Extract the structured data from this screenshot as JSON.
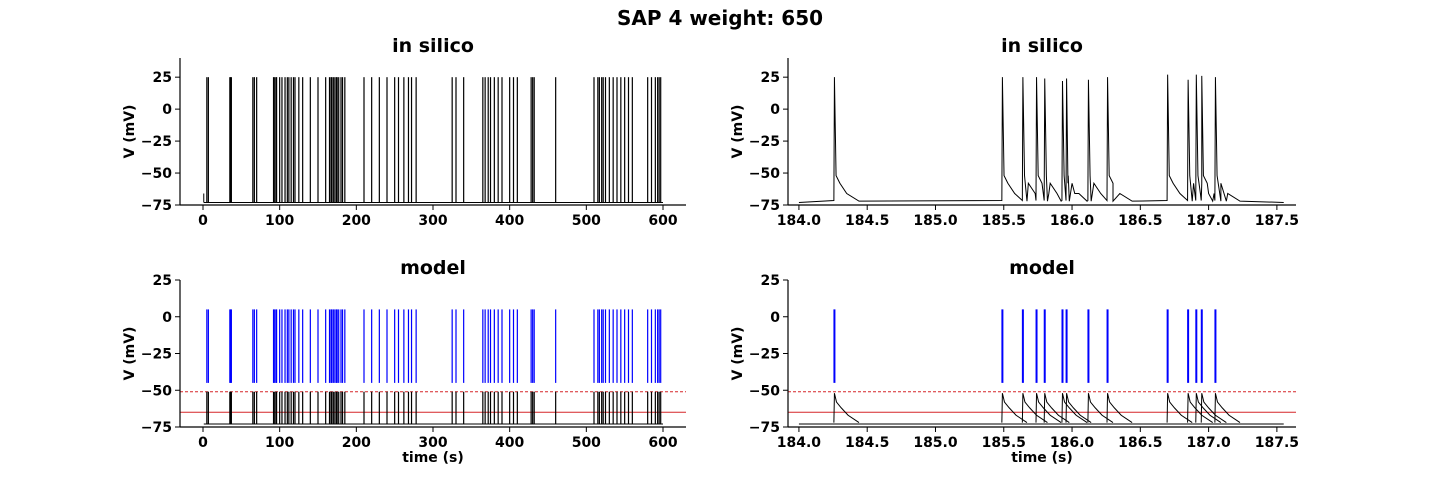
{
  "suptitle": "SAP 4 weight: 650",
  "chart_data": [
    {
      "id": "overview-insilico",
      "type": "line",
      "title": "in silico",
      "xlabel": "",
      "ylabel": "V (mV)",
      "xlim": [
        -30,
        630
      ],
      "ylim": [
        -75,
        40
      ],
      "xticks": [
        0,
        100,
        200,
        300,
        400,
        500,
        600
      ],
      "xtick_labels": [
        "0",
        "100",
        "200",
        "300",
        "400",
        "500",
        "600"
      ],
      "yticks": [
        -75,
        -50,
        -25,
        0,
        25
      ],
      "ytick_labels": [
        "−75",
        "−50",
        "−25",
        "0",
        "25"
      ],
      "trace_color": "#000000",
      "rest_mV": -73,
      "spike_peak_mV": 25,
      "start": {
        "t": 1,
        "v": -66
      },
      "spike_times_s": [
        5,
        7,
        35,
        36,
        37,
        65,
        67,
        70,
        92,
        93,
        95,
        96,
        100,
        103,
        107,
        110,
        112,
        115,
        118,
        120,
        125,
        130,
        140,
        150,
        160,
        165,
        167,
        168,
        170,
        172,
        174,
        175,
        177,
        180,
        182,
        185,
        210,
        220,
        230,
        240,
        250,
        255,
        262,
        268,
        272,
        278,
        325,
        330,
        340,
        365,
        368,
        372,
        375,
        380,
        385,
        390,
        400,
        405,
        410,
        428,
        430,
        432,
        460,
        510,
        515,
        517,
        520,
        522,
        525,
        530,
        535,
        540,
        545,
        550,
        555,
        560,
        580,
        585,
        590,
        593,
        595,
        597
      ]
    },
    {
      "id": "zoom-insilico",
      "type": "line",
      "title": "in silico",
      "xlabel": "",
      "ylabel": "V (mV)",
      "xlim": [
        183.92,
        187.64
      ],
      "ylim": [
        -75,
        40
      ],
      "xticks": [
        184.0,
        184.5,
        185.0,
        185.5,
        186.0,
        186.5,
        187.0,
        187.5
      ],
      "xtick_labels": [
        "184.0",
        "184.5",
        "185.0",
        "185.5",
        "186.0",
        "186.5",
        "187.0",
        "187.5"
      ],
      "yticks": [
        -75,
        -50,
        -25,
        0,
        25
      ],
      "ytick_labels": [
        "−75",
        "−50",
        "−25",
        "0",
        "25"
      ],
      "trace_color": "#000000",
      "rest_mV": -73,
      "spikes": [
        {
          "t": 184.26,
          "v": 25
        },
        {
          "t": 185.49,
          "v": 25
        },
        {
          "t": 185.64,
          "v": 25
        },
        {
          "t": 185.74,
          "v": 25
        },
        {
          "t": 185.8,
          "v": 24
        },
        {
          "t": 185.93,
          "v": 22
        },
        {
          "t": 185.96,
          "v": 24
        },
        {
          "t": 186.12,
          "v": 23
        },
        {
          "t": 186.26,
          "v": 25
        },
        {
          "t": 186.7,
          "v": 27
        },
        {
          "t": 186.85,
          "v": 23
        },
        {
          "t": 186.91,
          "v": 27
        },
        {
          "t": 186.95,
          "v": 26
        },
        {
          "t": 187.05,
          "v": 25
        }
      ]
    },
    {
      "id": "overview-model",
      "type": "line",
      "title": "model",
      "xlabel": "time (s)",
      "ylabel": "V (mV)",
      "xlim": [
        -30,
        630
      ],
      "ylim": [
        -75,
        25
      ],
      "xticks": [
        0,
        100,
        200,
        300,
        400,
        500,
        600
      ],
      "xtick_labels": [
        "0",
        "100",
        "200",
        "300",
        "400",
        "500",
        "600"
      ],
      "yticks": [
        -75,
        -50,
        -25,
        0,
        25
      ],
      "ytick_labels": [
        "−75",
        "−50",
        "−25",
        "0",
        "25"
      ],
      "trace_color": "#000000",
      "spike_marker_color": "#0000ff",
      "spike_marker_range_mV": [
        -45,
        5
      ],
      "threshold_mV": -51,
      "threshold_color": "#d62728",
      "threshold_style": "dashed",
      "reset_mV": -65,
      "reset_color": "#d62728",
      "reset_style": "solid",
      "rest_mV": -73,
      "spike_times_s": [
        5,
        7,
        35,
        36,
        37,
        65,
        67,
        70,
        92,
        93,
        95,
        96,
        100,
        103,
        107,
        110,
        112,
        115,
        118,
        120,
        125,
        130,
        140,
        150,
        160,
        165,
        167,
        168,
        170,
        172,
        174,
        175,
        177,
        180,
        182,
        185,
        210,
        220,
        230,
        240,
        250,
        255,
        262,
        268,
        272,
        278,
        325,
        330,
        340,
        365,
        368,
        372,
        375,
        380,
        385,
        390,
        400,
        405,
        410,
        428,
        430,
        432,
        460,
        510,
        515,
        517,
        520,
        522,
        525,
        530,
        535,
        540,
        545,
        550,
        555,
        560,
        580,
        585,
        590,
        593,
        595,
        597
      ]
    },
    {
      "id": "zoom-model",
      "type": "line",
      "title": "model",
      "xlabel": "time (s)",
      "ylabel": "V (mV)",
      "xlim": [
        183.92,
        187.64
      ],
      "ylim": [
        -75,
        25
      ],
      "xticks": [
        184.0,
        184.5,
        185.0,
        185.5,
        186.0,
        186.5,
        187.0,
        187.5
      ],
      "xtick_labels": [
        "184.0",
        "184.5",
        "185.0",
        "185.5",
        "186.0",
        "186.5",
        "187.0",
        "187.5"
      ],
      "yticks": [
        -75,
        -50,
        -25,
        0,
        25
      ],
      "ytick_labels": [
        "−75",
        "−50",
        "−25",
        "0",
        "25"
      ],
      "trace_color": "#000000",
      "spike_marker_color": "#0000ff",
      "spike_marker_range_mV": [
        -45,
        5
      ],
      "threshold_mV": -51,
      "threshold_color": "#d62728",
      "threshold_style": "dashed",
      "reset_mV": -65,
      "reset_color": "#d62728",
      "reset_style": "solid",
      "rest_mV": -73,
      "spike_times_s": [
        184.26,
        185.49,
        185.64,
        185.74,
        185.8,
        185.93,
        185.96,
        186.12,
        186.26,
        186.7,
        186.85,
        186.91,
        186.95,
        187.05
      ]
    }
  ]
}
